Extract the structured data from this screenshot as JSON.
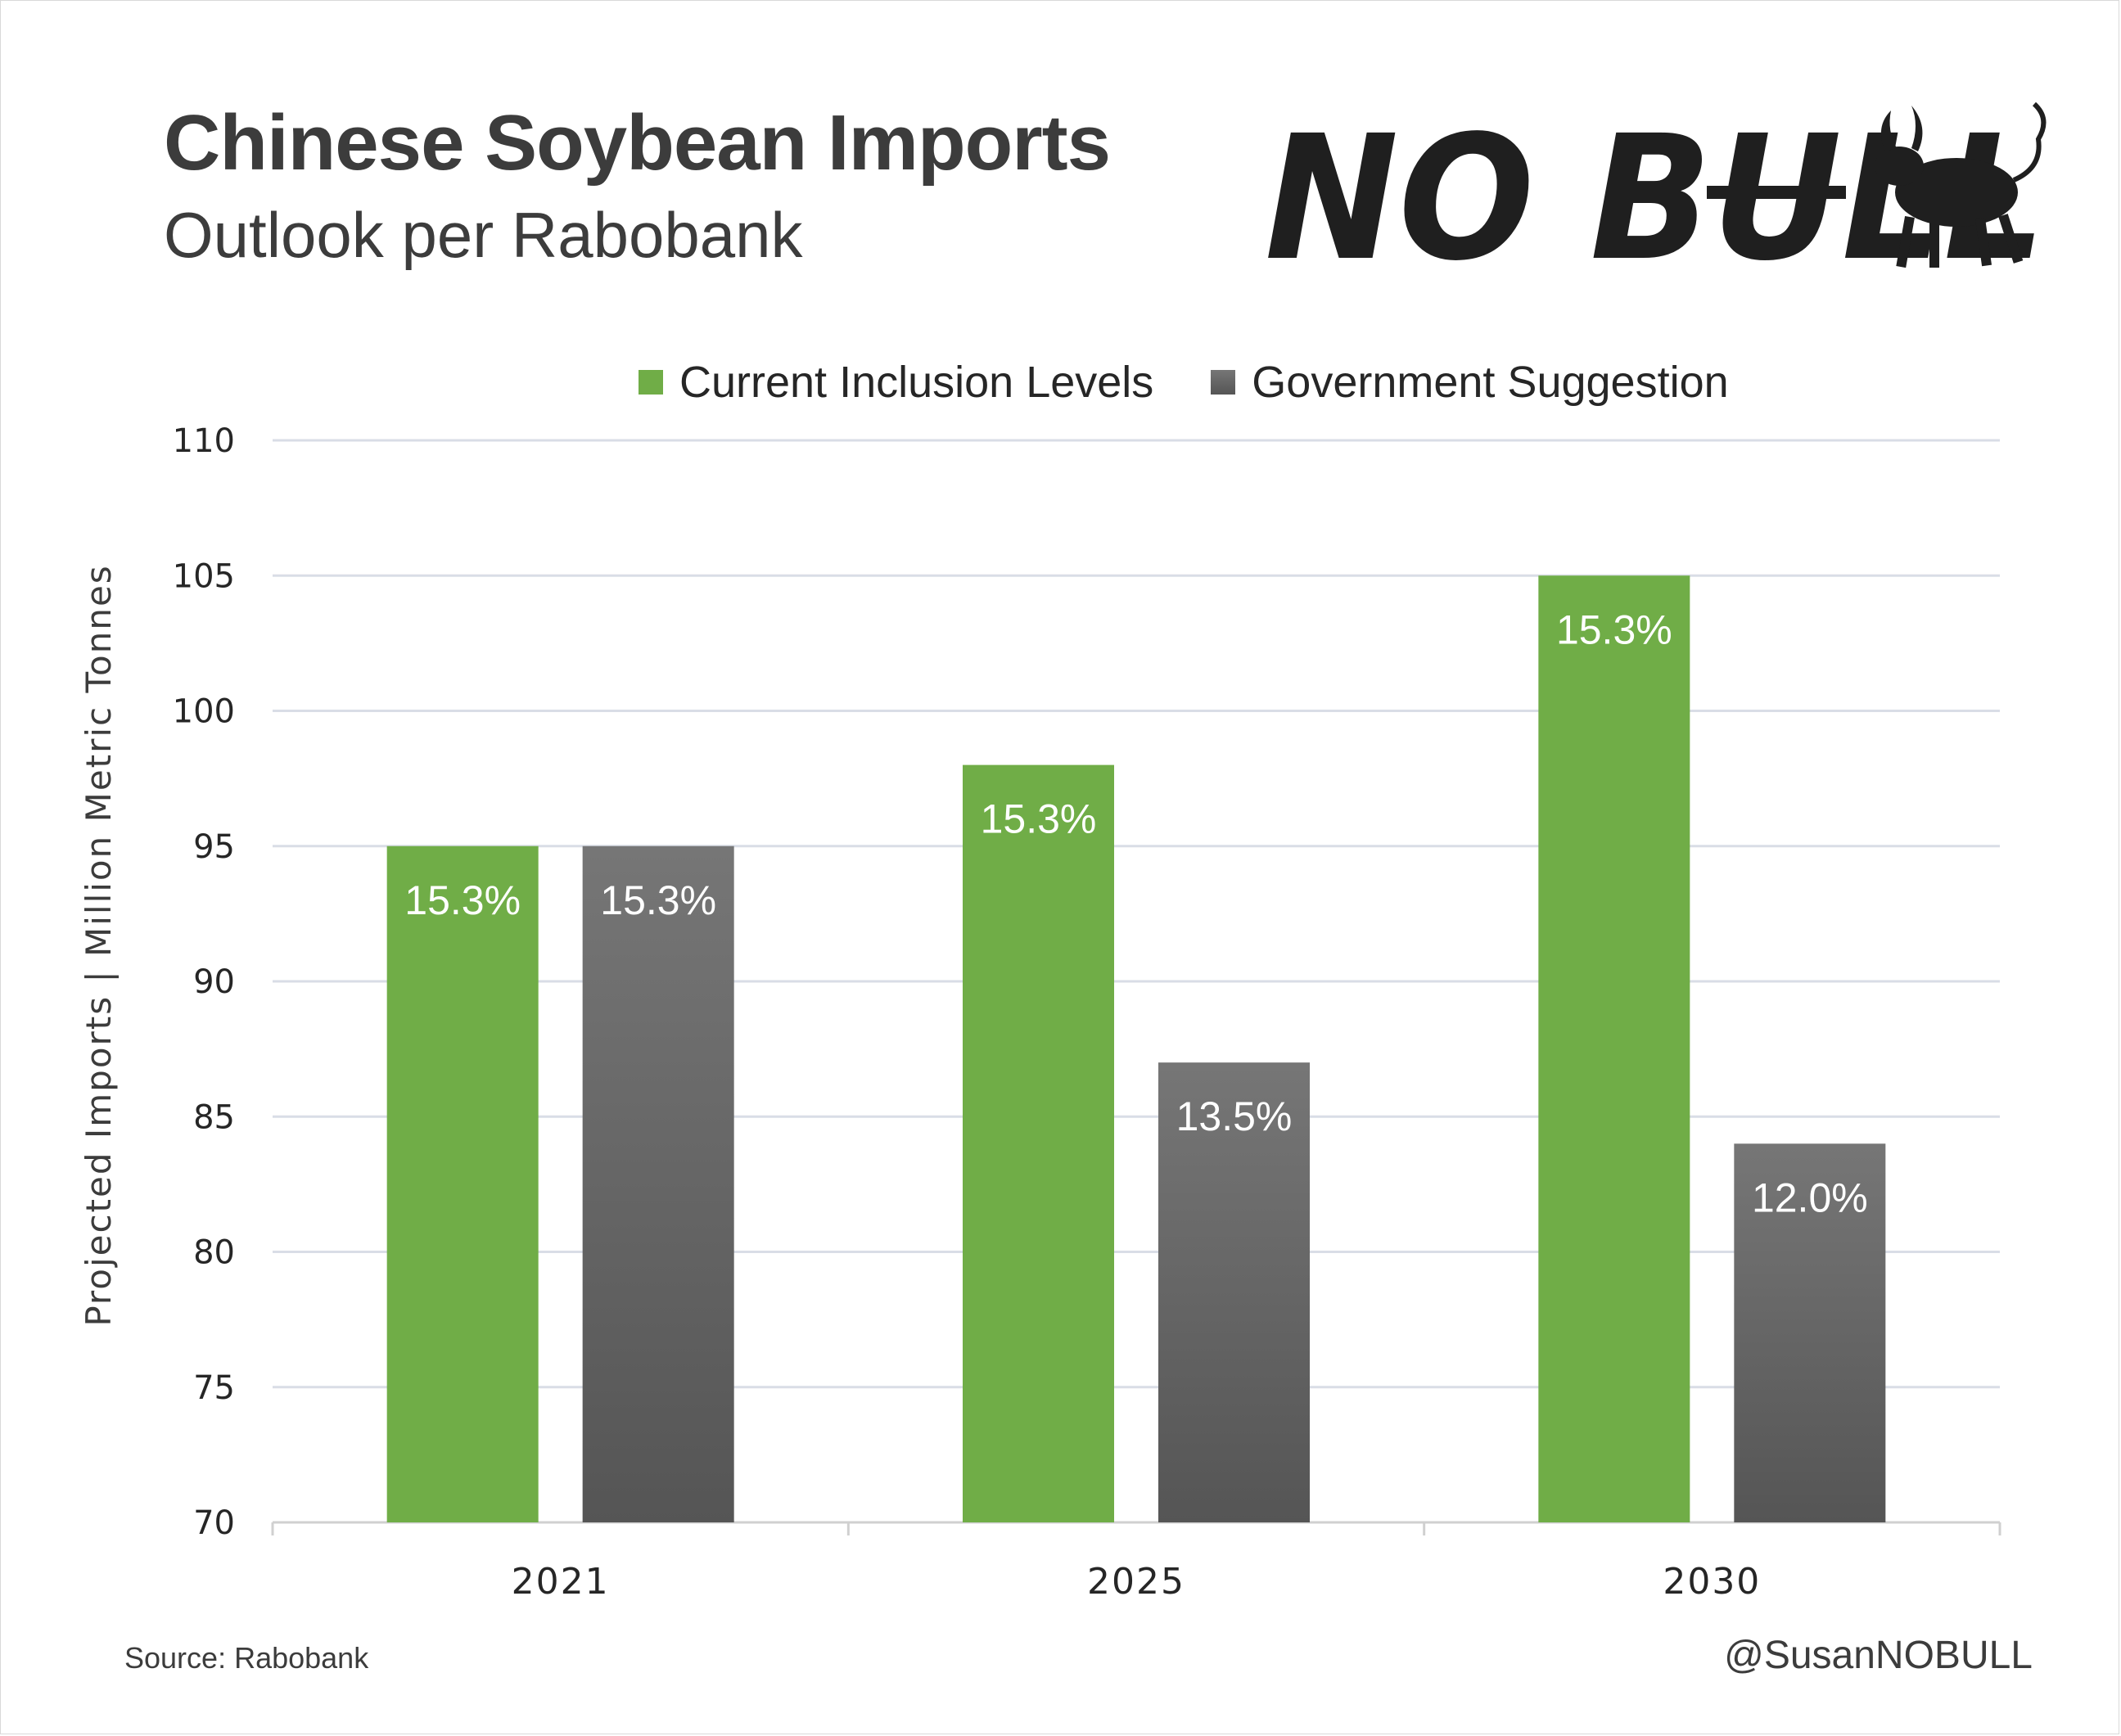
{
  "header": {
    "title": "Chinese Soybean Imports",
    "subtitle": "Outlook per Rabobank"
  },
  "logo": {
    "text": "NO BULL",
    "icon": "bull-icon"
  },
  "footer": {
    "source": "Source: Rabobank",
    "handle": "@SusanNOBULL"
  },
  "colors": {
    "green": "#70ad47",
    "gray_top": "#767676",
    "gray_bottom": "#555555",
    "grid": "#d9dde6",
    "text": "#3c3c3c"
  },
  "chart_data": {
    "type": "bar",
    "title": "Chinese Soybean Imports",
    "subtitle": "Outlook per Rabobank",
    "xlabel": "",
    "ylabel": "Projected Imports | Million Metric Tonnes",
    "ylim": [
      70,
      110
    ],
    "yticks": [
      70,
      75,
      80,
      85,
      90,
      95,
      100,
      105,
      110
    ],
    "grid": true,
    "legend_position": "top-center",
    "categories": [
      "2021",
      "2025",
      "2030"
    ],
    "series": [
      {
        "name": "Current Inclusion Levels",
        "color": "#70ad47",
        "values": [
          95,
          98,
          105
        ],
        "labels": [
          "15.3%",
          "15.3%",
          "15.3%"
        ]
      },
      {
        "name": "Government Suggestion",
        "color": "#5f5f5f",
        "values": [
          95,
          87,
          84
        ],
        "labels": [
          "15.3%",
          "13.5%",
          "12.0%"
        ]
      }
    ]
  }
}
